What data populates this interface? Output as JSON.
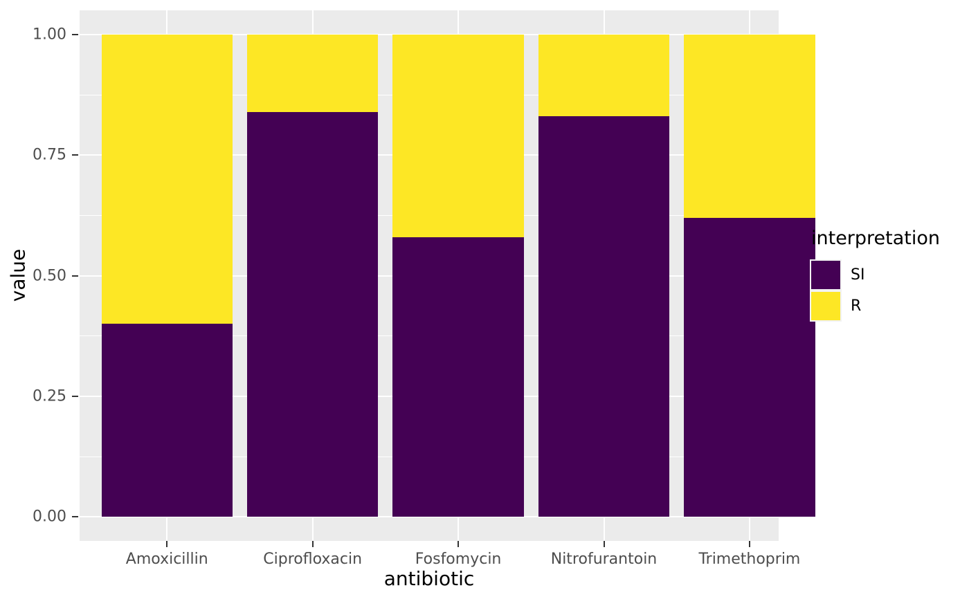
{
  "chart_data": {
    "type": "bar",
    "stacked": true,
    "orientation": "vertical",
    "title": "",
    "xlabel": "antibiotic",
    "ylabel": "value",
    "categories": [
      "Amoxicillin",
      "Ciprofloxacin",
      "Fosfomycin",
      "Nitrofurantoin",
      "Trimethoprim"
    ],
    "series": [
      {
        "name": "SI",
        "color": "#440154",
        "values": [
          0.4,
          0.84,
          0.58,
          0.83,
          0.62
        ]
      },
      {
        "name": "R",
        "color": "#FDE725",
        "values": [
          0.6,
          0.16,
          0.42,
          0.17,
          0.38
        ]
      }
    ],
    "ylim": [
      0,
      1
    ],
    "y_major_ticks": [
      0.0,
      0.25,
      0.5,
      0.75,
      1.0
    ],
    "y_tick_labels": [
      "0.00",
      "0.25",
      "0.50",
      "0.75",
      "1.00"
    ],
    "y_minor_ticks": [
      0.125,
      0.375,
      0.625,
      0.875
    ],
    "grid": true,
    "legend_title": "interpretation",
    "legend_position": "right",
    "style": {
      "panel_background": "#EBEBEB",
      "grid_color": "#FFFFFF",
      "tick_mark_color": "#333333",
      "tick_label_color": "#4D4D4D",
      "title_color": "#000000",
      "legend_key_background": "#F2F2F2"
    }
  }
}
